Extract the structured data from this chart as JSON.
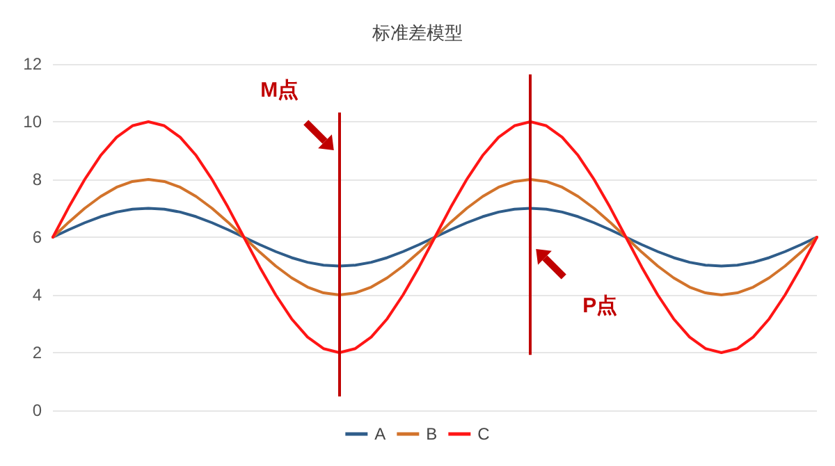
{
  "chart_data": {
    "type": "line",
    "title": "标准差模型",
    "categories": [
      null,
      null,
      null,
      null,
      null,
      null,
      null,
      null,
      null,
      null,
      null,
      null,
      null,
      null,
      null,
      null,
      null,
      null,
      null,
      null,
      null,
      null,
      null,
      null,
      null,
      null,
      null,
      null,
      null,
      null,
      null,
      null,
      null,
      null,
      null,
      null,
      null,
      null,
      null,
      null,
      null,
      null,
      null,
      null,
      null,
      null,
      null,
      null,
      null
    ],
    "ylim": [
      0,
      12
    ],
    "yticks": [
      0,
      2,
      4,
      6,
      8,
      10,
      12
    ],
    "tick_labels": "y",
    "grid": "y",
    "legend": "bottom",
    "marker": "none",
    "line_style": "solid",
    "series": [
      {
        "name": "A",
        "color": "#2f5d8a",
        "values": [
          6,
          6.26,
          6.5,
          6.71,
          6.87,
          6.97,
          7,
          6.97,
          6.87,
          6.71,
          6.5,
          6.26,
          6,
          5.74,
          5.5,
          5.29,
          5.13,
          5.03,
          5,
          5.03,
          5.13,
          5.29,
          5.5,
          5.74,
          6,
          6.26,
          6.5,
          6.71,
          6.87,
          6.97,
          7,
          6.97,
          6.87,
          6.71,
          6.5,
          6.26,
          6,
          5.74,
          5.5,
          5.29,
          5.13,
          5.03,
          5,
          5.03,
          5.13,
          5.29,
          5.5,
          5.74,
          6
        ]
      },
      {
        "name": "B",
        "color": "#d2732b",
        "values": [
          6,
          6.52,
          7,
          7.41,
          7.73,
          7.93,
          8,
          7.93,
          7.73,
          7.41,
          7,
          6.52,
          6,
          5.48,
          5,
          4.59,
          4.27,
          4.07,
          4,
          4.07,
          4.27,
          4.59,
          5,
          5.48,
          6,
          6.52,
          7,
          7.41,
          7.73,
          7.93,
          8,
          7.93,
          7.73,
          7.41,
          7,
          6.52,
          6,
          5.48,
          5,
          4.59,
          4.27,
          4.07,
          4,
          4.07,
          4.27,
          4.59,
          5,
          5.48,
          6
        ]
      },
      {
        "name": "C",
        "color": "#ff1515",
        "values": [
          6,
          7.04,
          8,
          8.83,
          9.46,
          9.86,
          10,
          9.86,
          9.46,
          8.83,
          8,
          7.04,
          6,
          4.96,
          4,
          3.17,
          2.54,
          2.14,
          2,
          2.14,
          2.54,
          3.17,
          4,
          4.96,
          6,
          7.04,
          8,
          8.83,
          9.46,
          9.86,
          10,
          9.86,
          9.46,
          8.83,
          8,
          7.04,
          6,
          4.96,
          4,
          3.17,
          2.54,
          2.14,
          2,
          2.14,
          2.54,
          3.17,
          4,
          4.96,
          6
        ]
      }
    ],
    "annotations": [
      "M点",
      "P点"
    ]
  }
}
